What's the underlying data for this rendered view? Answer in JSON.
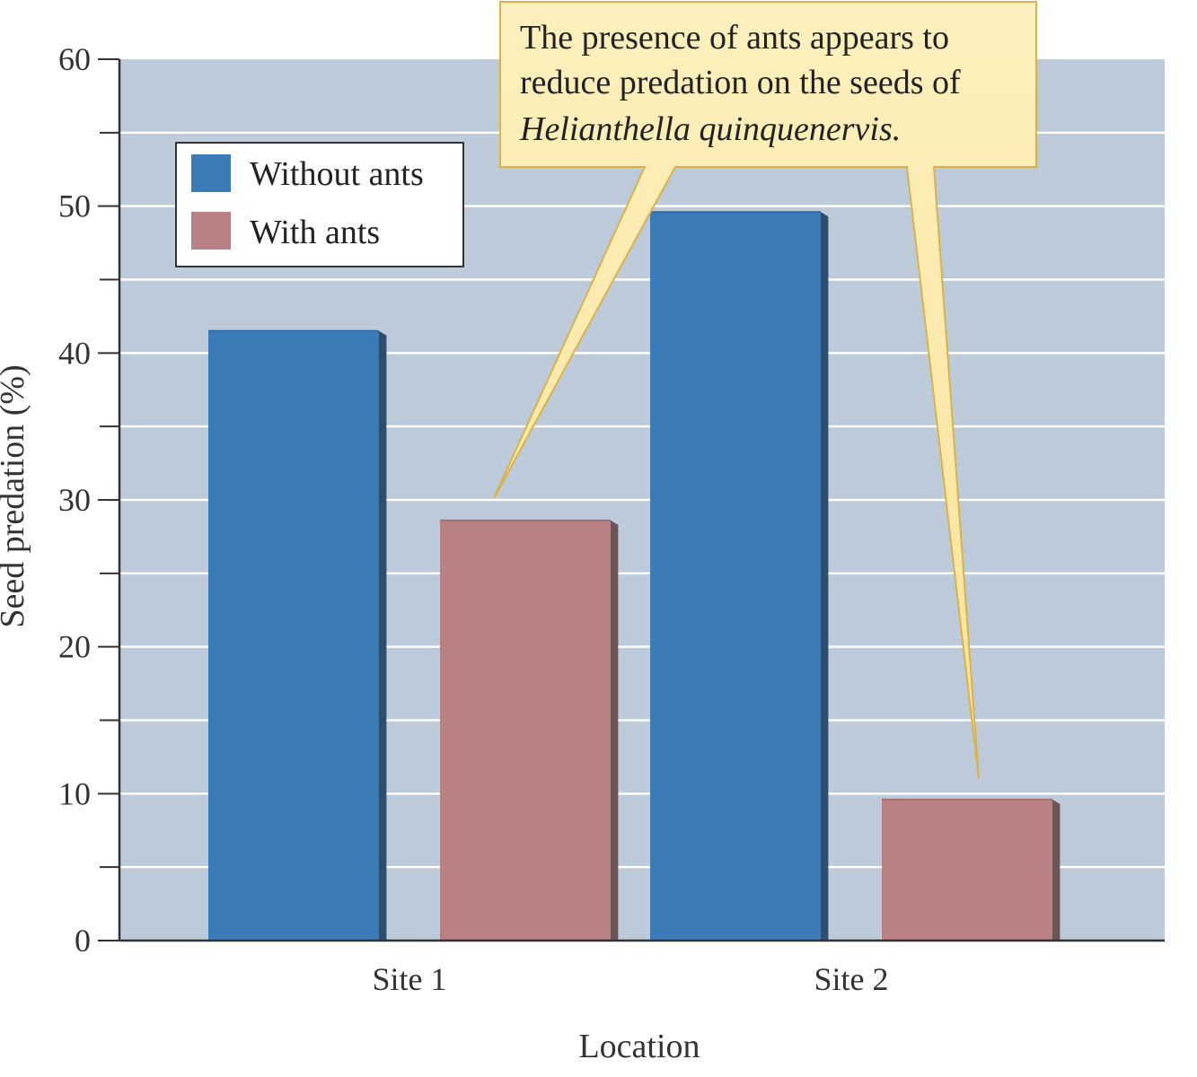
{
  "chart_data": {
    "type": "bar",
    "categories": [
      "Site 1",
      "Site 2"
    ],
    "series": [
      {
        "name": "Without ants",
        "values": [
          41.5,
          49.6
        ],
        "color": "#3a7bb8"
      },
      {
        "name": "With ants",
        "values": [
          28.6,
          9.6
        ],
        "color": "#b88284"
      }
    ],
    "xlabel": "Location",
    "ylabel": "Seed predation (%)",
    "ylim": [
      0,
      60
    ],
    "yticks": [
      "0",
      "10",
      "20",
      "30",
      "40",
      "50",
      "60"
    ],
    "ymajor_step": 10,
    "yminor_step": 5,
    "grid": true,
    "legend_position": "top-left",
    "plot_background": "#bccad9",
    "annotation": {
      "line1": "The presence of ants appears to",
      "line2": "reduce predation on the seeds of",
      "line3": "Helianthella quinquenervis.",
      "fill": "#fbe9a8",
      "border": "#d9b24a"
    }
  }
}
